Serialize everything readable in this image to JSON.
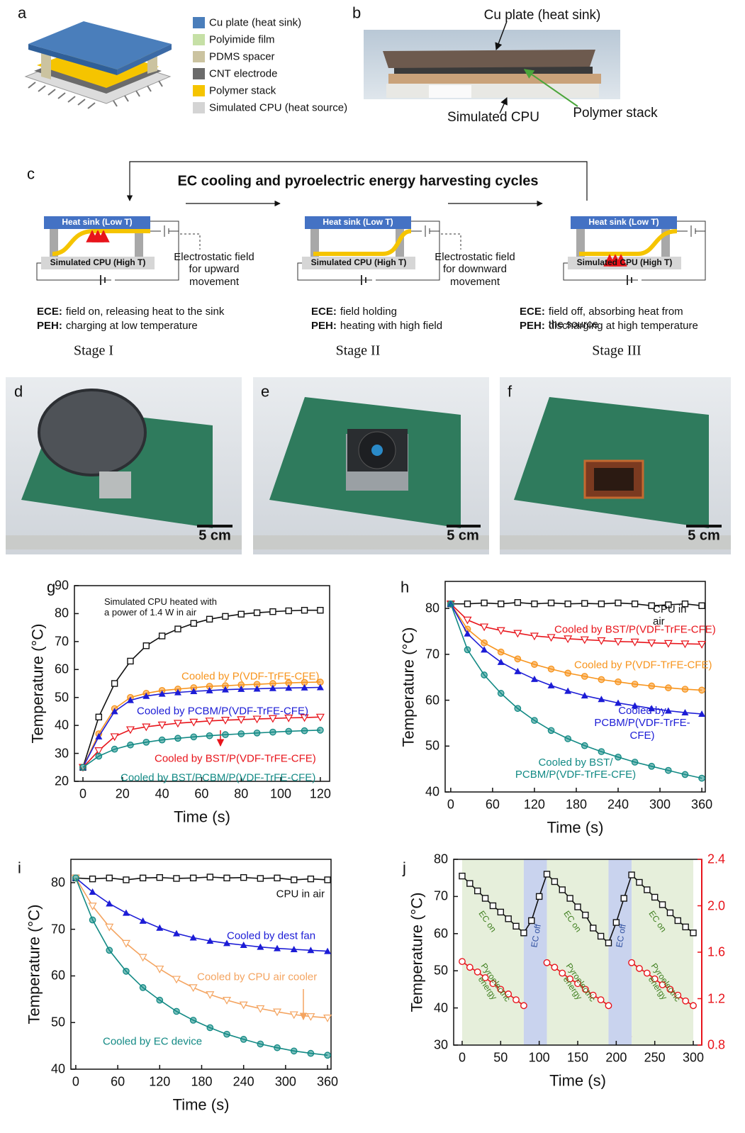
{
  "panel_labels": [
    "a",
    "b",
    "c",
    "d",
    "e",
    "f",
    "g",
    "h",
    "i",
    "j"
  ],
  "panel_a": {
    "legend": [
      {
        "label": "Cu plate (heat sink)",
        "color": "#4a7ebb"
      },
      {
        "label": "Polyimide film",
        "color": "#c6e0a6"
      },
      {
        "label": "PDMS spacer",
        "color": "#cbc3a0"
      },
      {
        "label": "CNT electrode",
        "color": "#6b6b6b"
      },
      {
        "label": "Polymer stack",
        "color": "#f5c400"
      },
      {
        "label": "Simulated CPU (heat source)",
        "color": "#d4d4d4"
      }
    ]
  },
  "panel_b": {
    "labels": [
      "Cu plate (heat sink)",
      "Simulated CPU",
      "Polymer stack"
    ]
  },
  "panel_c": {
    "title": "EC cooling and pyroelectric energy harvesting cycles",
    "stages": [
      {
        "heat_sink": "Heat  sink (Low T)",
        "cpu": "Simulated CPU (High T)",
        "field": "Electrostatic field\nfor upward\nmovement",
        "ece_key": "ECE:",
        "ece": "field on, releasing heat to the sink",
        "peh_key": "PEH:",
        "peh": "charging at low temperature",
        "name": "Stage I"
      },
      {
        "heat_sink": "Heat  sink (Low T)",
        "cpu": "Simulated CPU (High T)",
        "field": "Electrostatic field\nfor downward\nmovement",
        "ece_key": "ECE:",
        "ece": "field holding",
        "peh_key": "PEH:",
        "peh": "heating with high field",
        "name": "Stage II"
      },
      {
        "heat_sink": "Heat  sink (Low T)",
        "cpu": "Simulated CPU (High T)",
        "ece_key": "ECE:",
        "ece": "field off, absorbing heat from\nthe source",
        "peh_key": "PEH:",
        "peh": "discharging at high temperature",
        "name": "Stage III"
      }
    ]
  },
  "photos": [
    {
      "scale": "5 cm"
    },
    {
      "scale": "5 cm"
    },
    {
      "scale": "5 cm"
    }
  ],
  "chart_data": [
    {
      "type": "line",
      "xlabel": "Time (s)",
      "ylabel": "Temperature (°C)",
      "xlim": [
        -4.3,
        124.7
      ],
      "xticks": [
        0,
        20,
        40,
        60,
        80,
        100,
        120
      ],
      "ylim": [
        20,
        90
      ],
      "yticks": [
        20,
        30,
        40,
        50,
        60,
        70,
        80,
        90
      ],
      "annotation": "Simulated CPU heated with\na power of 1.4 W in air",
      "x": [
        0,
        8,
        16,
        24,
        32,
        40,
        48,
        56,
        64,
        72,
        80,
        88,
        96,
        104,
        112,
        120
      ],
      "series": [
        {
          "color": "#111111",
          "marker": "square",
          "values": [
            25,
            43,
            55,
            63,
            68.5,
            72,
            74.5,
            76.5,
            78,
            79,
            79.8,
            80.3,
            80.7,
            81,
            81.2,
            81.2
          ]
        },
        {
          "name": "Cooled by P(VDF-TrFE-CFE)",
          "color": "#f7941d",
          "marker": "circle-half",
          "values": [
            25,
            37,
            46,
            50,
            51.5,
            52.5,
            53,
            53.5,
            54,
            54.2,
            54.5,
            54.7,
            55,
            55.2,
            55.4,
            55.5
          ]
        },
        {
          "name": "Cooled by PCBM/P(VDF-TrFE-CFE)",
          "color": "#1c1cd6",
          "marker": "triangle-up",
          "values": [
            25,
            36,
            45,
            49,
            50.5,
            51.3,
            51.8,
            52.2,
            52.5,
            52.8,
            53,
            53.1,
            53.3,
            53.4,
            53.5,
            53.6
          ]
        },
        {
          "name": "Cooled by BST/P(VDF-TrFE-CFE)",
          "color": "#e8141b",
          "marker": "triangle-down",
          "values": [
            25,
            31,
            36,
            38.5,
            39.5,
            40.2,
            40.8,
            41.2,
            41.6,
            41.9,
            42.1,
            42.3,
            42.5,
            42.7,
            42.8,
            43
          ]
        },
        {
          "name": "Cooled by BST/PCBM/P(VDF-TrFE-CFE)",
          "color": "#138a85",
          "marker": "circle-half",
          "values": [
            25,
            29,
            31.5,
            33,
            34,
            34.8,
            35.4,
            35.9,
            36.3,
            36.7,
            37,
            37.3,
            37.6,
            37.9,
            38.1,
            38.3
          ]
        }
      ]
    },
    {
      "type": "line",
      "xlabel": "Time (s)",
      "ylabel": "Temperature (°C)",
      "xlim": [
        -8,
        365
      ],
      "xticks": [
        0,
        60,
        120,
        180,
        240,
        300,
        360
      ],
      "ylim": [
        40,
        85.9
      ],
      "yticks": [
        40,
        50,
        60,
        70,
        80
      ],
      "x": [
        0,
        24,
        48,
        72,
        96,
        120,
        144,
        168,
        192,
        216,
        240,
        264,
        288,
        312,
        336,
        360
      ],
      "series": [
        {
          "name": "CPU in air",
          "color": "#111111",
          "marker": "square",
          "values": [
            81,
            81,
            81.2,
            81,
            81.3,
            81,
            81.2,
            81,
            81.1,
            81,
            81.2,
            81,
            80.6,
            80.8,
            81,
            80.6
          ]
        },
        {
          "name": "Cooled by BST/P(VDF-TrFE-CFE)",
          "color": "#e8141b",
          "marker": "triangle-down",
          "values": [
            81,
            77.5,
            76,
            75.2,
            74.6,
            74,
            73.7,
            73.4,
            73.2,
            73,
            72.8,
            72.7,
            72.5,
            72.4,
            72.3,
            72.2
          ]
        },
        {
          "name": "Cooled by P(VDF-TrFE-CFE)",
          "color": "#f7941d",
          "marker": "circle-half",
          "values": [
            81,
            75.5,
            72.5,
            70.5,
            69,
            67.8,
            66.8,
            65.9,
            65.2,
            64.5,
            64,
            63.5,
            63.1,
            62.7,
            62.4,
            62.2
          ]
        },
        {
          "name": "Cooled by\nPCBM/P(VDF-TrFE-CFE)",
          "color": "#1c1cd6",
          "marker": "triangle-up",
          "values": [
            81,
            74.5,
            71,
            68.3,
            66.3,
            64.6,
            63.2,
            62,
            61,
            60.2,
            59.4,
            58.8,
            58.2,
            57.7,
            57.3,
            57
          ]
        },
        {
          "name": "Cooled by BST/\nPCBM/P(VDF-TrFE-CFE)",
          "color": "#138a85",
          "marker": "circle-half",
          "values": [
            81,
            71,
            65.5,
            61.5,
            58.2,
            55.6,
            53.4,
            51.6,
            50.1,
            48.8,
            47.6,
            46.5,
            45.6,
            44.7,
            43.8,
            43
          ]
        }
      ]
    },
    {
      "type": "line",
      "xlabel": "Time (s)",
      "ylabel": "Temperature (°C)",
      "xlim": [
        -7,
        365
      ],
      "xticks": [
        0,
        60,
        120,
        180,
        240,
        300,
        360
      ],
      "ylim": [
        40,
        85
      ],
      "yticks": [
        40,
        50,
        60,
        70,
        80
      ],
      "x": [
        0,
        24,
        48,
        72,
        96,
        120,
        144,
        168,
        192,
        216,
        240,
        264,
        288,
        312,
        336,
        360
      ],
      "series": [
        {
          "name": "CPU in air",
          "color": "#111111",
          "marker": "square",
          "values": [
            81,
            80.8,
            81,
            80.6,
            81,
            81.1,
            80.9,
            81,
            81.2,
            81,
            81.1,
            80.9,
            81,
            80.6,
            80.8,
            80.6
          ]
        },
        {
          "name": "Cooled by dest fan",
          "color": "#1c1cd6",
          "marker": "triangle-up",
          "values": [
            81,
            78,
            75.5,
            73.5,
            71.8,
            70.3,
            69.1,
            68.2,
            67.5,
            67,
            66.6,
            66.2,
            65.9,
            65.7,
            65.5,
            65.3
          ]
        },
        {
          "name": "Cooled by CPU air cooler",
          "color": "#f4a460",
          "marker": "triangle-down",
          "values": [
            81,
            75,
            70.5,
            67,
            64,
            61.5,
            59.3,
            57.5,
            56,
            54.8,
            53.8,
            53,
            52.3,
            51.7,
            51.3,
            51
          ]
        },
        {
          "name": "Cooled by EC device",
          "color": "#138a85",
          "marker": "circle-half",
          "values": [
            81,
            72,
            65.5,
            61,
            57.5,
            54.8,
            52.4,
            50.5,
            48.9,
            47.5,
            46.4,
            45.4,
            44.6,
            43.9,
            43.4,
            43
          ]
        }
      ]
    },
    {
      "type": "line",
      "xlabel": "Time (s)",
      "ylabel": "Temperature (°C)",
      "xlim": [
        -11,
        311
      ],
      "xticks": [
        0,
        50,
        100,
        150,
        200,
        250,
        300
      ],
      "ylim": [
        30,
        80
      ],
      "yticks": [
        30,
        40,
        50,
        60,
        70,
        80
      ],
      "y2lim": [
        0.8,
        2.4
      ],
      "y2ticks": [
        0.8,
        1.2,
        1.6,
        {
          "value": 2,
          "label": "2.0"
        },
        2.4
      ],
      "y2color": "#e8141b",
      "regions": [
        {
          "start": 0,
          "end": 80,
          "label": "EC on",
          "color": "#e6efdb",
          "text_color": "#3f7f1f"
        },
        {
          "start": 80,
          "end": 110,
          "label": "EC off",
          "color": "#c9d3ee",
          "text_color": "#3050a0"
        },
        {
          "start": 110,
          "end": 190,
          "label": "EC on",
          "color": "#e6efdb",
          "text_color": "#3f7f1f"
        },
        {
          "start": 190,
          "end": 220,
          "label": "EC off",
          "color": "#c9d3ee",
          "text_color": "#3050a0"
        },
        {
          "start": 220,
          "end": 300,
          "label": "EC on",
          "color": "#e6efdb",
          "text_color": "#3f7f1f"
        }
      ],
      "annotations": [
        "Pyroelectric\nenergy",
        "Pyroelectric\nenergy",
        "Pyroelectric\nenergy"
      ],
      "x": [
        0,
        10,
        20,
        30,
        40,
        50,
        60,
        70,
        80,
        90,
        100,
        110,
        120,
        130,
        140,
        150,
        160,
        170,
        180,
        190,
        200,
        210,
        220,
        230,
        240,
        250,
        260,
        270,
        280,
        290,
        300
      ],
      "series": [
        {
          "color": "#111111",
          "marker": "square",
          "values": [
            75.5,
            73.5,
            71.5,
            69.5,
            67.5,
            65.8,
            64,
            62,
            60.2,
            63.5,
            70,
            76,
            74,
            71.8,
            69.5,
            67.2,
            65,
            61.5,
            59.3,
            57.5,
            63,
            69.5,
            75.8,
            73.8,
            71.8,
            69.8,
            67.8,
            65.6,
            63.5,
            61.8,
            60.2
          ]
        },
        {
          "color": "#e8141b",
          "marker": "circle",
          "axis": "y2",
          "values": [
            1.52,
            1.47,
            1.43,
            1.38,
            1.33,
            1.28,
            1.24,
            1.19,
            1.14,
            null,
            null,
            1.51,
            1.47,
            1.42,
            1.37,
            1.33,
            1.28,
            1.23,
            1.19,
            1.14,
            null,
            null,
            1.51,
            1.46,
            1.42,
            1.37,
            1.32,
            1.28,
            1.23,
            1.18,
            1.14
          ]
        }
      ]
    }
  ]
}
